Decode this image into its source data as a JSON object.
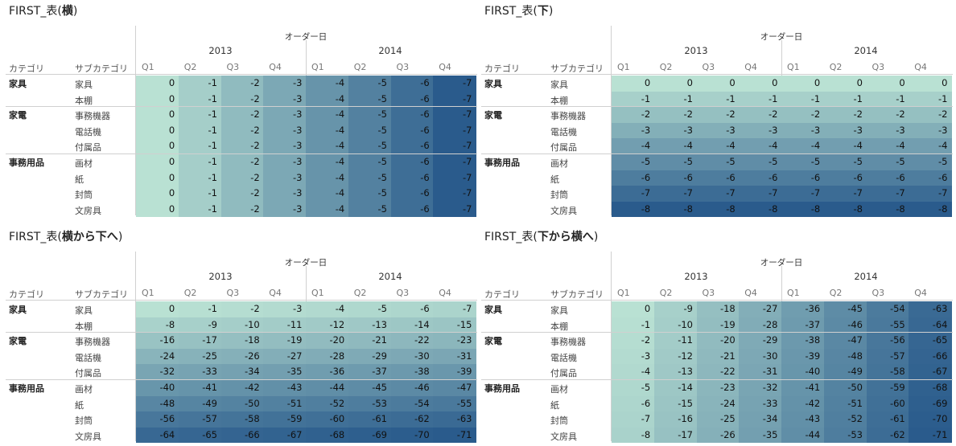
{
  "headers": {
    "order_date": "オーダー日",
    "category": "カテゴリ",
    "subcategory": "サブカテゴリ",
    "years": [
      "2013",
      "2014"
    ],
    "quarters": [
      "Q1",
      "Q2",
      "Q3",
      "Q4",
      "Q1",
      "Q2",
      "Q3",
      "Q4"
    ]
  },
  "categories": [
    {
      "name": "家具",
      "subs": [
        "家具",
        "本棚"
      ]
    },
    {
      "name": "家電",
      "subs": [
        "事務機器",
        "電話機",
        "付属品"
      ]
    },
    {
      "name": "事務用品",
      "subs": [
        "画材",
        "紙",
        "封筒",
        "文房具"
      ]
    }
  ],
  "panels": [
    {
      "title_prefix": "FIRST_表(",
      "title_bold": "横",
      "title_suffix": ")",
      "values": [
        [
          "0",
          "-1",
          "-2",
          "-3",
          "-4",
          "-5",
          "-6",
          "-7"
        ],
        [
          "0",
          "-1",
          "-2",
          "-3",
          "-4",
          "-5",
          "-6",
          "-7"
        ],
        [
          "0",
          "-1",
          "-2",
          "-3",
          "-4",
          "-5",
          "-6",
          "-7"
        ],
        [
          "0",
          "-1",
          "-2",
          "-3",
          "-4",
          "-5",
          "-6",
          "-7"
        ],
        [
          "0",
          "-1",
          "-2",
          "-3",
          "-4",
          "-5",
          "-6",
          "-7"
        ],
        [
          "0",
          "-1",
          "-2",
          "-3",
          "-4",
          "-5",
          "-6",
          "-7"
        ],
        [
          "0",
          "-1",
          "-2",
          "-3",
          "-4",
          "-5",
          "-6",
          "-7"
        ],
        [
          "0",
          "-1",
          "-2",
          "-3",
          "-4",
          "-5",
          "-6",
          "-7"
        ],
        [
          "0",
          "-1",
          "-2",
          "-3",
          "-4",
          "-5",
          "-6",
          "-7"
        ]
      ]
    },
    {
      "title_prefix": "FIRST_表(",
      "title_bold": "下",
      "title_suffix": ")",
      "values": [
        [
          "0",
          "0",
          "0",
          "0",
          "0",
          "0",
          "0",
          "0"
        ],
        [
          "-1",
          "-1",
          "-1",
          "-1",
          "-1",
          "-1",
          "-1",
          "-1"
        ],
        [
          "-2",
          "-2",
          "-2",
          "-2",
          "-2",
          "-2",
          "-2",
          "-2"
        ],
        [
          "-3",
          "-3",
          "-3",
          "-3",
          "-3",
          "-3",
          "-3",
          "-3"
        ],
        [
          "-4",
          "-4",
          "-4",
          "-4",
          "-4",
          "-4",
          "-4",
          "-4"
        ],
        [
          "-5",
          "-5",
          "-5",
          "-5",
          "-5",
          "-5",
          "-5",
          "-5"
        ],
        [
          "-6",
          "-6",
          "-6",
          "-6",
          "-6",
          "-6",
          "-6",
          "-6"
        ],
        [
          "-7",
          "-7",
          "-7",
          "-7",
          "-7",
          "-7",
          "-7",
          "-7"
        ],
        [
          "-8",
          "-8",
          "-8",
          "-8",
          "-8",
          "-8",
          "-8",
          "-8"
        ]
      ]
    },
    {
      "title_prefix": "FIRST_表(",
      "title_bold": "横から下へ",
      "title_suffix": ")",
      "values": [
        [
          "0",
          "-1",
          "-2",
          "-3",
          "-4",
          "-5",
          "-6",
          "-7"
        ],
        [
          "-8",
          "-9",
          "-10",
          "-11",
          "-12",
          "-13",
          "-14",
          "-15"
        ],
        [
          "-16",
          "-17",
          "-18",
          "-19",
          "-20",
          "-21",
          "-22",
          "-23"
        ],
        [
          "-24",
          "-25",
          "-26",
          "-27",
          "-28",
          "-29",
          "-30",
          "-31"
        ],
        [
          "-32",
          "-33",
          "-34",
          "-35",
          "-36",
          "-37",
          "-38",
          "-39"
        ],
        [
          "-40",
          "-41",
          "-42",
          "-43",
          "-44",
          "-45",
          "-46",
          "-47"
        ],
        [
          "-48",
          "-49",
          "-50",
          "-51",
          "-52",
          "-53",
          "-54",
          "-55"
        ],
        [
          "-56",
          "-57",
          "-58",
          "-59",
          "-60",
          "-61",
          "-62",
          "-63"
        ],
        [
          "-64",
          "-65",
          "-66",
          "-67",
          "-68",
          "-69",
          "-70",
          "-71"
        ]
      ]
    },
    {
      "title_prefix": "FIRST_表(",
      "title_bold": "下から横へ",
      "title_suffix": ")",
      "values": [
        [
          "0",
          "-9",
          "-18",
          "-27",
          "-36",
          "-45",
          "-54",
          "-63"
        ],
        [
          "-1",
          "-10",
          "-19",
          "-28",
          "-37",
          "-46",
          "-55",
          "-64"
        ],
        [
          "-2",
          "-11",
          "-20",
          "-29",
          "-38",
          "-47",
          "-56",
          "-65"
        ],
        [
          "-3",
          "-12",
          "-21",
          "-30",
          "-39",
          "-48",
          "-57",
          "-66"
        ],
        [
          "-4",
          "-13",
          "-22",
          "-31",
          "-40",
          "-49",
          "-58",
          "-67"
        ],
        [
          "-5",
          "-14",
          "-23",
          "-32",
          "-41",
          "-50",
          "-59",
          "-68"
        ],
        [
          "-6",
          "-15",
          "-24",
          "-33",
          "-42",
          "-51",
          "-60",
          "-69"
        ],
        [
          "-7",
          "-16",
          "-25",
          "-34",
          "-43",
          "-52",
          "-61",
          "-70"
        ],
        [
          "-8",
          "-17",
          "-26",
          "-35",
          "-44",
          "-53",
          "-62",
          "-71"
        ]
      ]
    }
  ],
  "colors": {
    "light": "#b9e1d3",
    "dark": "#2a5b8c"
  }
}
